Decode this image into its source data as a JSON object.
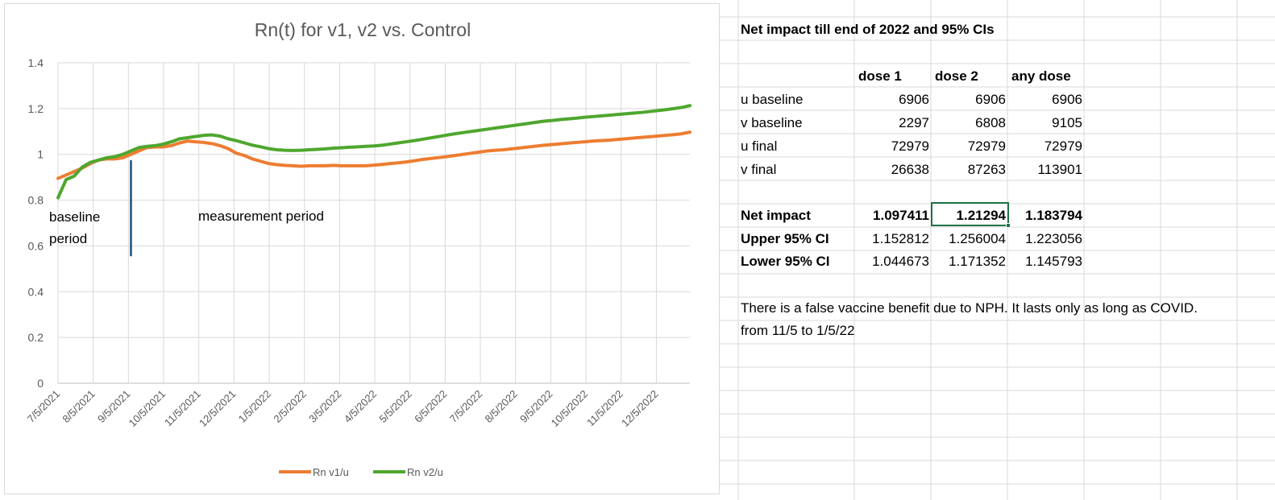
{
  "chart_data": {
    "type": "line",
    "title": "Rn(t) for v1, v2 vs. Control",
    "x_tick_labels": [
      "7/5/2021",
      "8/5/2021",
      "9/5/2021",
      "10/5/2021",
      "11/5/2021",
      "12/5/2021",
      "1/5/2022",
      "2/5/2022",
      "3/5/2022",
      "4/5/2022",
      "5/5/2022",
      "6/5/2022",
      "7/5/2022",
      "8/5/2022",
      "9/5/2022",
      "10/5/2022",
      "11/5/2022",
      "12/5/2022"
    ],
    "y_tick_labels": [
      "0",
      "0.2",
      "0.4",
      "0.6",
      "0.8",
      "1",
      "1.2",
      "1.4"
    ],
    "ylim": [
      0,
      1.4
    ],
    "xlim_weeks": [
      0,
      78
    ],
    "grid": true,
    "legend_position": "bottom",
    "series": [
      {
        "name": "Rn v1/u",
        "color": "#ED7D31",
        "x_weeks": [
          0,
          1,
          2,
          3,
          4,
          5,
          6,
          7,
          8,
          9,
          10,
          11,
          12,
          13,
          14,
          15,
          16,
          17,
          18,
          19,
          20,
          21,
          22,
          23,
          24,
          25,
          26,
          27,
          28,
          29,
          30,
          31,
          32,
          33,
          34,
          35,
          36,
          37,
          38,
          39,
          40,
          41,
          42,
          43,
          44,
          45,
          46,
          47,
          48,
          49,
          50,
          51,
          52,
          53,
          54,
          55,
          56,
          57,
          58,
          59,
          60,
          61,
          62,
          63,
          64,
          65,
          66,
          67,
          68,
          69,
          70,
          71,
          72,
          73,
          74,
          75,
          76,
          77,
          78
        ],
        "values": [
          0.895,
          0.91,
          0.925,
          0.94,
          0.96,
          0.975,
          0.98,
          0.98,
          0.985,
          1.0,
          1.015,
          1.03,
          1.032,
          1.033,
          1.038,
          1.05,
          1.058,
          1.055,
          1.052,
          1.047,
          1.038,
          1.025,
          1.005,
          0.995,
          0.98,
          0.97,
          0.96,
          0.955,
          0.952,
          0.95,
          0.948,
          0.95,
          0.95,
          0.95,
          0.952,
          0.95,
          0.95,
          0.95,
          0.95,
          0.953,
          0.956,
          0.96,
          0.963,
          0.967,
          0.972,
          0.978,
          0.982,
          0.986,
          0.99,
          0.995,
          1.0,
          1.005,
          1.01,
          1.015,
          1.018,
          1.02,
          1.024,
          1.028,
          1.032,
          1.036,
          1.04,
          1.043,
          1.046,
          1.049,
          1.052,
          1.055,
          1.058,
          1.06,
          1.062,
          1.065,
          1.068,
          1.071,
          1.074,
          1.077,
          1.08,
          1.083,
          1.086,
          1.09,
          1.097
        ]
      },
      {
        "name": "Rn v2/u",
        "color": "#4EA72E",
        "x_weeks": [
          0,
          1,
          2,
          3,
          4,
          5,
          6,
          7,
          8,
          9,
          10,
          11,
          12,
          13,
          14,
          15,
          16,
          17,
          18,
          19,
          20,
          21,
          22,
          23,
          24,
          25,
          26,
          27,
          28,
          29,
          30,
          31,
          32,
          33,
          34,
          35,
          36,
          37,
          38,
          39,
          40,
          41,
          42,
          43,
          44,
          45,
          46,
          47,
          48,
          49,
          50,
          51,
          52,
          53,
          54,
          55,
          56,
          57,
          58,
          59,
          60,
          61,
          62,
          63,
          64,
          65,
          66,
          67,
          68,
          69,
          70,
          71,
          72,
          73,
          74,
          75,
          76,
          77,
          78
        ],
        "values": [
          0.81,
          0.89,
          0.905,
          0.945,
          0.965,
          0.975,
          0.985,
          0.99,
          1.0,
          1.015,
          1.03,
          1.035,
          1.038,
          1.045,
          1.055,
          1.068,
          1.073,
          1.078,
          1.083,
          1.085,
          1.08,
          1.068,
          1.06,
          1.05,
          1.04,
          1.033,
          1.025,
          1.02,
          1.018,
          1.017,
          1.018,
          1.02,
          1.022,
          1.024,
          1.027,
          1.029,
          1.031,
          1.033,
          1.035,
          1.037,
          1.04,
          1.045,
          1.05,
          1.055,
          1.06,
          1.066,
          1.072,
          1.078,
          1.084,
          1.09,
          1.095,
          1.1,
          1.105,
          1.11,
          1.115,
          1.12,
          1.125,
          1.13,
          1.135,
          1.14,
          1.145,
          1.148,
          1.152,
          1.155,
          1.158,
          1.162,
          1.165,
          1.168,
          1.171,
          1.174,
          1.177,
          1.18,
          1.183,
          1.187,
          1.191,
          1.195,
          1.2,
          1.205,
          1.213
        ]
      }
    ],
    "annotations": [
      {
        "lines": [
          "baseline",
          "period"
        ]
      },
      {
        "lines": [
          "measurement period"
        ]
      }
    ],
    "marker_week": 9
  },
  "table": {
    "title": "Net impact till end of 2022 and 95% CIs",
    "headers": [
      "dose 1",
      "dose 2",
      "any dose"
    ],
    "rows": [
      {
        "label": "u baseline",
        "values": [
          "6906",
          "6906",
          "6906"
        ],
        "bold": false
      },
      {
        "label": "v baseline",
        "values": [
          "2297",
          "6808",
          "9105"
        ],
        "bold": false
      },
      {
        "label": "u final",
        "values": [
          "72979",
          "72979",
          "72979"
        ],
        "bold": false
      },
      {
        "label": "v final",
        "values": [
          "26638",
          "87263",
          "113901"
        ],
        "bold": false
      }
    ],
    "summary_rows": [
      {
        "label": "Net impact",
        "values": [
          "1.097411",
          "1.21294",
          "1.183794"
        ],
        "bold": true
      },
      {
        "label": "Upper 95% CI",
        "values": [
          "1.152812",
          "1.256004",
          "1.223056"
        ],
        "bold": false
      },
      {
        "label": "Lower 95% CI",
        "values": [
          "1.044673",
          "1.171352",
          "1.145793"
        ],
        "bold": false
      }
    ],
    "selected": {
      "row": 0,
      "col": 1
    },
    "selected_color": "#217346"
  },
  "notes": [
    "There is a false vaccine benefit due to NPH. It lasts only as long as COVID.",
    "from 11/5 to 1/5/22"
  ]
}
